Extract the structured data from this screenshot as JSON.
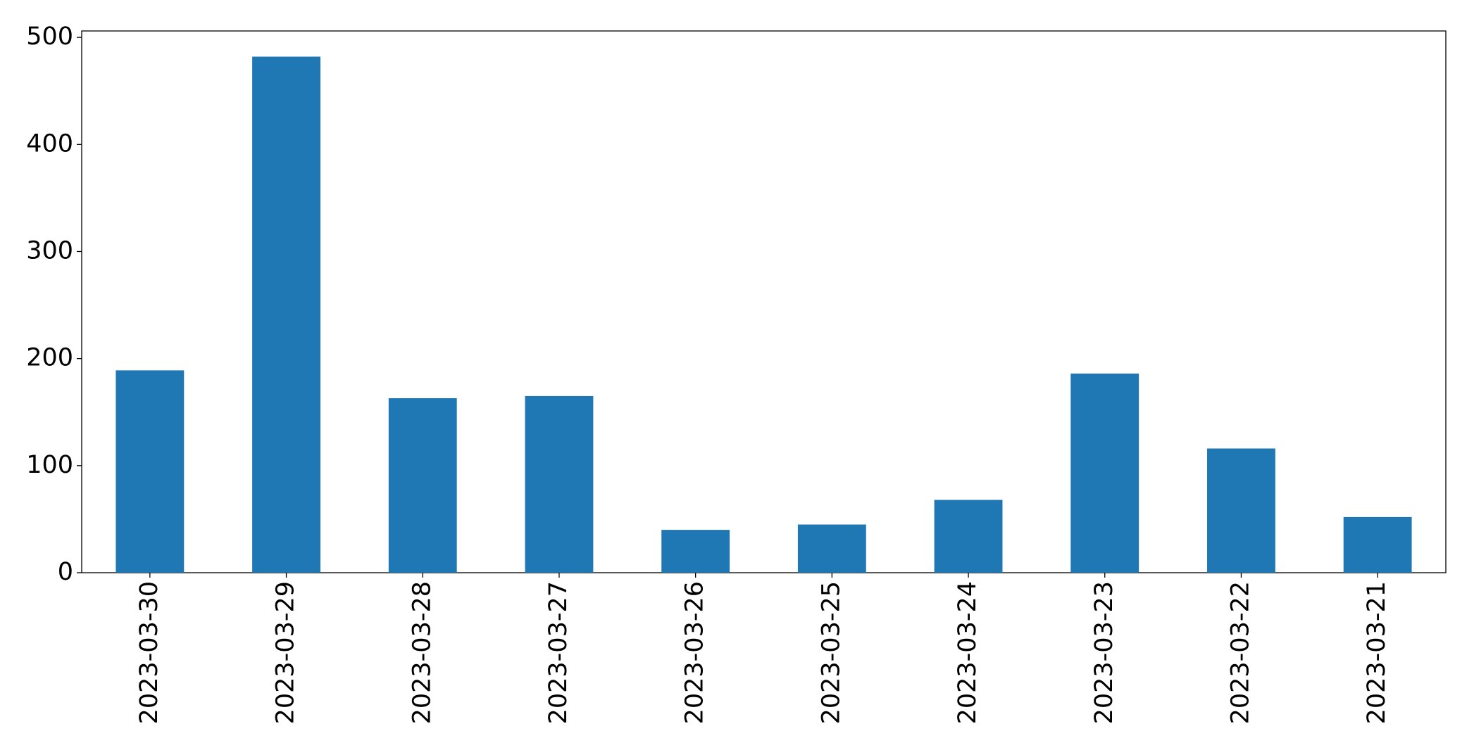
{
  "chart_data": {
    "type": "bar",
    "categories": [
      "2023-03-30",
      "2023-03-29",
      "2023-03-28",
      "2023-03-27",
      "2023-03-26",
      "2023-03-25",
      "2023-03-24",
      "2023-03-23",
      "2023-03-22",
      "2023-03-21"
    ],
    "values": [
      189,
      482,
      163,
      165,
      40,
      45,
      68,
      186,
      116,
      52
    ],
    "color": "#1f77b4",
    "ylim": [
      0,
      506
    ],
    "yticks": [
      0,
      100,
      200,
      300,
      400,
      500
    ],
    "grid": false
  }
}
